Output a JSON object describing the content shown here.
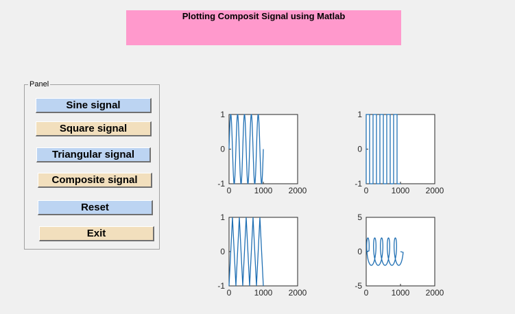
{
  "header": {
    "title": "Plotting Composit Signal using Matlab"
  },
  "panel": {
    "legend": "Panel",
    "buttons": {
      "sine": "Sine signal",
      "square": "Square signal",
      "triangular": "Triangular signal",
      "composite": "Composite signal",
      "reset": "Reset",
      "exit": "Exit"
    }
  },
  "colors": {
    "title_bg": "#ff99cc",
    "button_blue": "#bcd4f2",
    "button_tan": "#f2dfbd",
    "line": "#1f6fb3"
  },
  "chart_data": [
    {
      "type": "line",
      "title": "",
      "xlabel": "",
      "ylabel": "",
      "xlim": [
        0,
        2000
      ],
      "ylim": [
        -1,
        1
      ],
      "xticks": [
        "0",
        "1000",
        "2000"
      ],
      "yticks": [
        "-1",
        "0",
        "1"
      ],
      "signal": "sine",
      "cycles": 5,
      "x_range": [
        0,
        1000
      ]
    },
    {
      "type": "line",
      "title": "",
      "xlabel": "",
      "ylabel": "",
      "xlim": [
        0,
        2000
      ],
      "ylim": [
        -1,
        1
      ],
      "xticks": [
        "0",
        "1000",
        "2000"
      ],
      "yticks": [
        "-1",
        "0",
        "1"
      ],
      "signal": "square",
      "cycles": 5,
      "x_range": [
        0,
        1000
      ]
    },
    {
      "type": "line",
      "title": "",
      "xlabel": "",
      "ylabel": "",
      "xlim": [
        0,
        2000
      ],
      "ylim": [
        -1,
        1
      ],
      "xticks": [
        "0",
        "1000",
        "2000"
      ],
      "yticks": [
        "-1",
        "0",
        "1"
      ],
      "signal": "triangular",
      "cycles": 5,
      "x_range": [
        0,
        1000
      ]
    },
    {
      "type": "line",
      "title": "",
      "xlabel": "",
      "ylabel": "",
      "xlim": [
        0,
        2000
      ],
      "ylim": [
        -5,
        5
      ],
      "xticks": [
        "0",
        "1000",
        "2000"
      ],
      "yticks": [
        "-5",
        "0",
        "5"
      ],
      "signal": "composite",
      "cycles": 5,
      "x_range": [
        0,
        1000
      ]
    }
  ]
}
